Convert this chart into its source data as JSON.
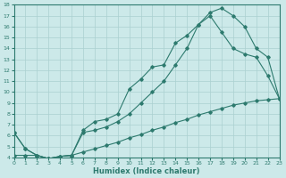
{
  "xlabel": "Humidex (Indice chaleur)",
  "xlim": [
    0,
    23
  ],
  "ylim": [
    4,
    18
  ],
  "yticks": [
    4,
    5,
    6,
    7,
    8,
    9,
    10,
    11,
    12,
    13,
    14,
    15,
    16,
    17,
    18
  ],
  "xticks": [
    0,
    1,
    2,
    3,
    4,
    5,
    6,
    7,
    8,
    9,
    10,
    11,
    12,
    13,
    14,
    15,
    16,
    17,
    18,
    19,
    20,
    21,
    22,
    23
  ],
  "background_color": "#cce9e9",
  "grid_color": "#aad0d0",
  "line_color": "#2d7a6e",
  "curve1_x": [
    0,
    1,
    2,
    3,
    4,
    5,
    6,
    7,
    8,
    9,
    10,
    11,
    12,
    13,
    14,
    15,
    16,
    17,
    18,
    19,
    20,
    21,
    22,
    23
  ],
  "curve1_y": [
    6.3,
    4.8,
    4.2,
    3.9,
    4.1,
    4.2,
    6.5,
    7.3,
    7.5,
    8.0,
    10.3,
    11.2,
    12.3,
    12.5,
    14.5,
    15.2,
    16.2,
    17.3,
    17.7,
    17.0,
    16.0,
    14.0,
    13.2,
    9.4
  ],
  "curve2_x": [
    0,
    1,
    2,
    3,
    4,
    5,
    6,
    7,
    8,
    9,
    10,
    11,
    12,
    13,
    14,
    15,
    16,
    17,
    18,
    19,
    20,
    21,
    22,
    23
  ],
  "curve2_y": [
    6.3,
    4.8,
    4.2,
    3.9,
    4.1,
    4.2,
    6.3,
    6.5,
    6.8,
    7.3,
    8.0,
    9.0,
    10.0,
    11.0,
    12.5,
    14.0,
    16.2,
    17.0,
    15.5,
    14.0,
    13.5,
    13.2,
    11.5,
    9.4
  ],
  "curve3_x": [
    0,
    1,
    2,
    3,
    4,
    5,
    6,
    7,
    8,
    9,
    10,
    11,
    12,
    13,
    14,
    15,
    16,
    17,
    18,
    19,
    20,
    21,
    22,
    23
  ],
  "curve3_y": [
    4.2,
    4.2,
    4.2,
    3.9,
    4.1,
    4.2,
    4.5,
    4.8,
    5.1,
    5.4,
    5.8,
    6.1,
    6.5,
    6.8,
    7.2,
    7.5,
    7.9,
    8.2,
    8.5,
    8.8,
    9.0,
    9.2,
    9.3,
    9.4
  ]
}
